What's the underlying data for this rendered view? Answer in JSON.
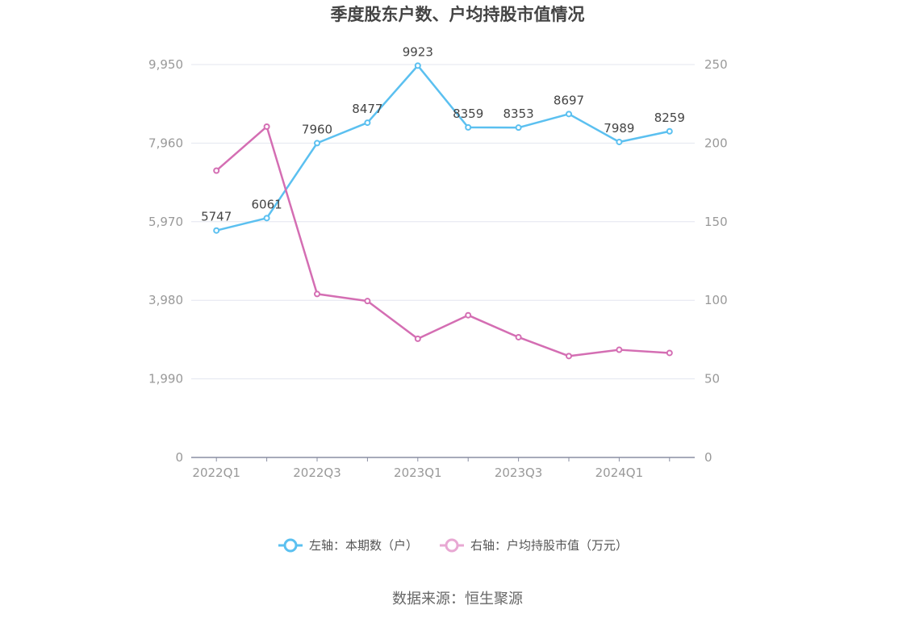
{
  "chart_data": {
    "type": "line",
    "title": "季度股东户数、户均持股市值情况",
    "categories": [
      "2022Q1",
      "2022Q2",
      "2022Q3",
      "2022Q4",
      "2023Q1",
      "2023Q2",
      "2023Q3",
      "2023Q4",
      "2024Q1",
      "2024Q2"
    ],
    "x_tick_labels": [
      "2022Q1",
      "2022Q3",
      "2023Q1",
      "2023Q3",
      "2024Q1"
    ],
    "y_left": {
      "min": 0,
      "max": 9950,
      "ticks": [
        0,
        1990,
        3980,
        5970,
        7960,
        9950
      ],
      "tick_labels": [
        "0",
        "1,990",
        "3,980",
        "5,970",
        "7,960",
        "9,950"
      ]
    },
    "y_right": {
      "min": 0,
      "max": 250,
      "ticks": [
        0,
        50,
        100,
        150,
        200,
        250
      ],
      "tick_labels": [
        "0",
        "50",
        "100",
        "150",
        "200",
        "250"
      ]
    },
    "grid": true,
    "legend_position": "bottom",
    "series": [
      {
        "name": "左轴：本期数（户）",
        "axis": "left",
        "color": "#5bc0f0",
        "values": [
          5747,
          6061,
          7960,
          8477,
          9923,
          8359,
          8353,
          8697,
          7989,
          8259
        ],
        "labels": [
          "5747",
          "6061",
          "7960",
          "8477",
          "9923",
          "8359",
          "8353",
          "8697",
          "7989",
          "8259"
        ]
      },
      {
        "name": "右轴：户均持股市值（万元）",
        "axis": "right",
        "color": "#d46eb3",
        "values": [
          182.5,
          210.5,
          104,
          99.5,
          75.5,
          90.5,
          76.5,
          64.5,
          68.5,
          66.5
        ]
      }
    ],
    "source": "数据来源：恒生聚源"
  }
}
